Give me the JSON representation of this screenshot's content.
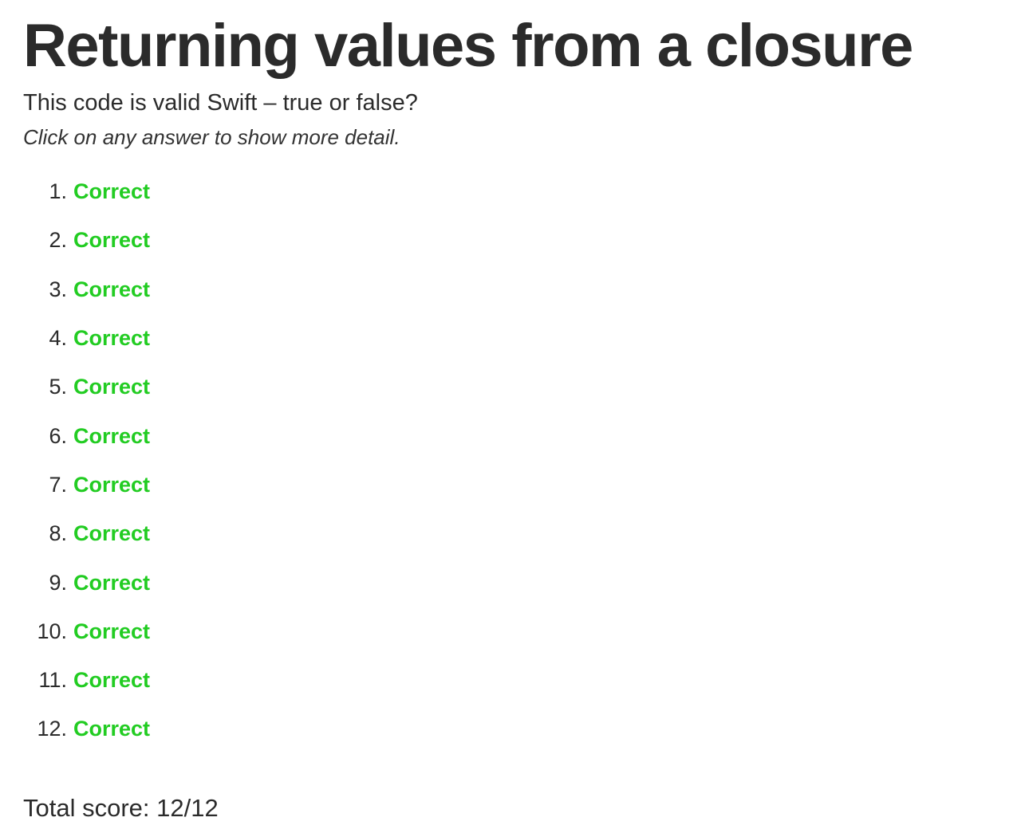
{
  "page": {
    "title": "Returning values from a closure",
    "question": "This code is valid Swift – true or false?",
    "hint": "Click on any answer to show more detail."
  },
  "colors": {
    "correct": "#22cc22",
    "text": "#2b2b2b"
  },
  "answers": [
    {
      "number": "1.",
      "label": "Correct"
    },
    {
      "number": "2.",
      "label": "Correct"
    },
    {
      "number": "3.",
      "label": "Correct"
    },
    {
      "number": "4.",
      "label": "Correct"
    },
    {
      "number": "5.",
      "label": "Correct"
    },
    {
      "number": "6.",
      "label": "Correct"
    },
    {
      "number": "7.",
      "label": "Correct"
    },
    {
      "number": "8.",
      "label": "Correct"
    },
    {
      "number": "9.",
      "label": "Correct"
    },
    {
      "number": "10.",
      "label": "Correct"
    },
    {
      "number": "11.",
      "label": "Correct"
    },
    {
      "number": "12.",
      "label": "Correct"
    }
  ],
  "score": {
    "text": "Total score: 12/12"
  }
}
